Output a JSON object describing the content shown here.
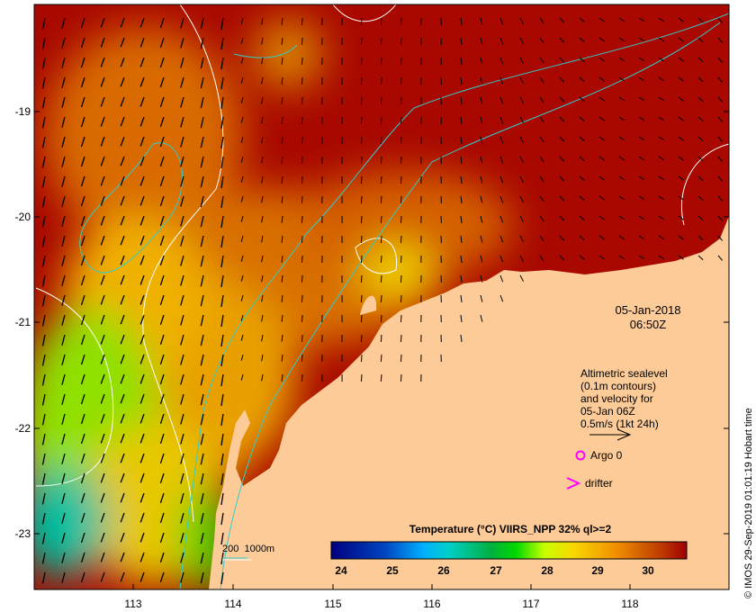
{
  "map": {
    "y_axis_labels": [
      "-19",
      "-20",
      "-21",
      "-22",
      "-23"
    ],
    "x_axis_labels": [
      "113",
      "114",
      "115",
      "116",
      "117",
      "118"
    ],
    "date": "05-Jan-2018",
    "time": "06:50Z",
    "legend": {
      "lines": [
        "Altimetric sealevel",
        "(0.1m contours)",
        "and velocity for",
        "05-Jan 06Z",
        "0.5m/s (1kt 24h)"
      ],
      "argo_label": "Argo 0",
      "drifter_label": "drifter"
    },
    "depth_scale": "200  1000m",
    "credit": "© IMOS 29-Sep-2019 01:01:19 Hobart time",
    "colorbar": {
      "title": "Temperature (°C) VIIRS_NPP 32% ql>=2",
      "ticks": [
        "24",
        "25",
        "26",
        "27",
        "28",
        "29",
        "30"
      ],
      "range": [
        23.3,
        30.2
      ]
    },
    "colors": {
      "land": "#fdcb98",
      "marker": "#ff00ff",
      "contour": "#ffffff",
      "isobath": "#33cccc"
    }
  }
}
